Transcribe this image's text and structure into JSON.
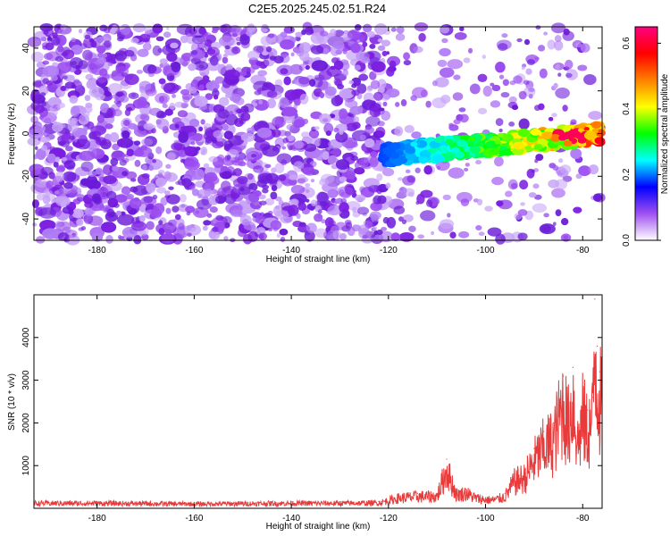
{
  "title": "C2E5.2025.245.02.51.R24",
  "spectrogram": {
    "type": "heatmap",
    "xlabel": "Height of straight line (km)",
    "ylabel": "Frequency (Hz)",
    "xlim": [
      -193,
      -76
    ],
    "ylim": [
      -50,
      50
    ],
    "xticks": [
      -180,
      -160,
      -140,
      -120,
      -100,
      -80
    ],
    "yticks": [
      -40,
      -20,
      0,
      20,
      40
    ],
    "colorbar": {
      "label": "Normalized spectral amplitude",
      "range": [
        0,
        0.65
      ],
      "ticks": [
        0.0,
        0.2,
        0.4,
        0.6
      ],
      "colors": [
        "#ffffff",
        "#a050f0",
        "#0000ff",
        "#00ffff",
        "#00ff00",
        "#ffff00",
        "#ff8000",
        "#ff0000",
        "#ff0080"
      ]
    },
    "signal_band": {
      "x_start": -121,
      "x_end": -76,
      "freq_start": -10,
      "freq_end": 0,
      "peak_x": -82,
      "peak_value": 0.62
    }
  },
  "chart_data": {
    "type": "line",
    "xlabel": "Height of straight line (km)",
    "ylabel": "SNR (10 * v/v)",
    "xlim": [
      -193,
      -76
    ],
    "ylim": [
      0,
      5000
    ],
    "xticks": [
      -180,
      -160,
      -140,
      -120,
      -100,
      -80
    ],
    "yticks": [
      1000,
      2000,
      3000,
      4000
    ],
    "color": "#e83a3a",
    "series": [
      {
        "name": "SNR",
        "x": [
          -193,
          -180,
          -170,
          -160,
          -150,
          -140,
          -130,
          -122,
          -118,
          -114,
          -110,
          -108,
          -106,
          -104,
          -102,
          -100,
          -98,
          -96,
          -94,
          -92,
          -90,
          -88,
          -86,
          -84,
          -83,
          -82,
          -81,
          -80,
          -79,
          -78,
          -77.5,
          -77,
          -76.5
        ],
        "values": [
          150,
          150,
          140,
          130,
          140,
          150,
          150,
          160,
          300,
          350,
          350,
          1150,
          400,
          450,
          300,
          250,
          250,
          350,
          800,
          900,
          1400,
          1800,
          2000,
          3100,
          2400,
          3300,
          1900,
          2700,
          2300,
          2600,
          4900,
          3800,
          3200
        ]
      }
    ]
  }
}
